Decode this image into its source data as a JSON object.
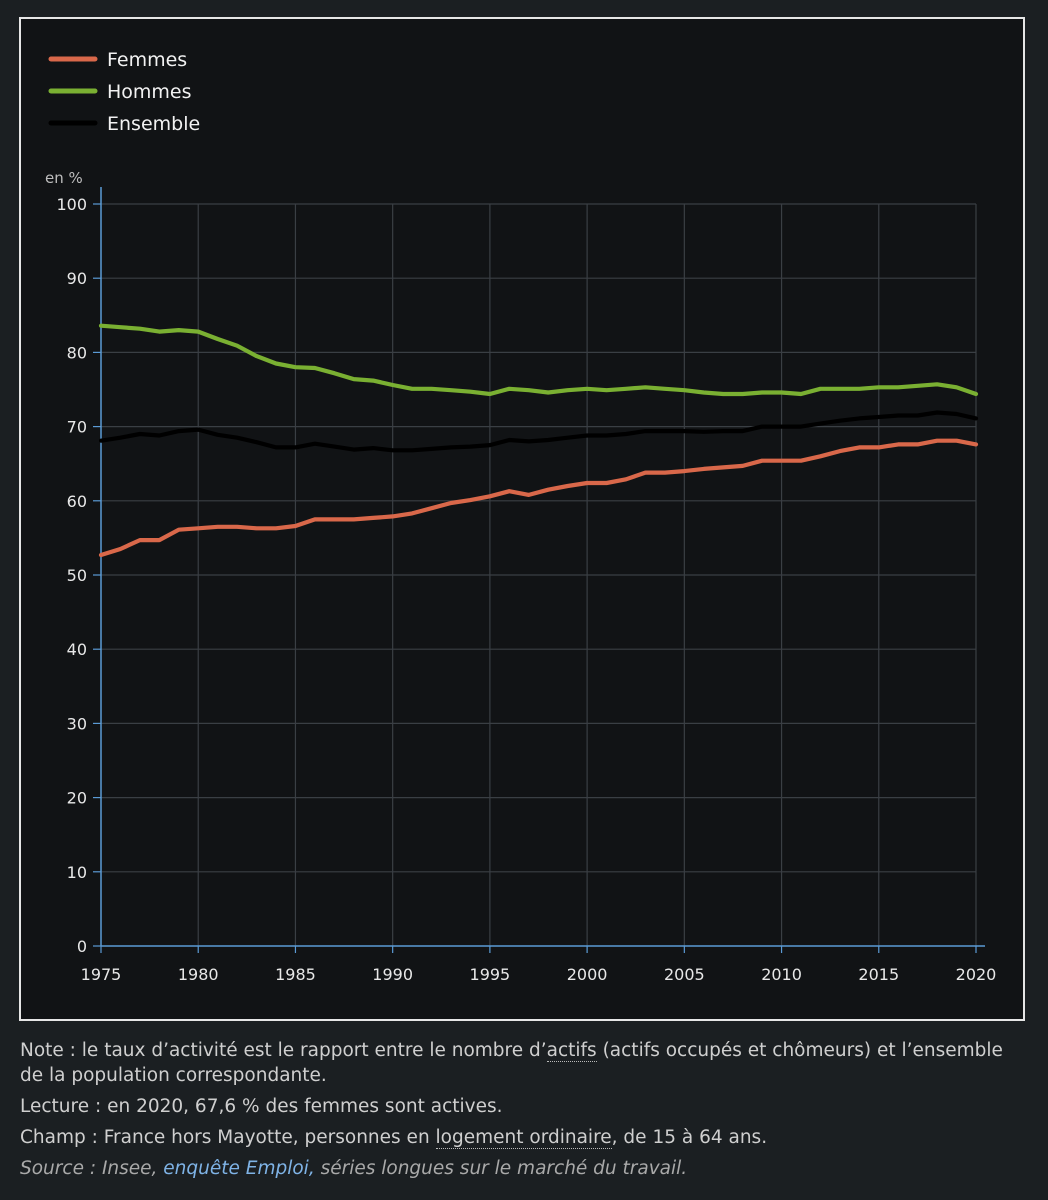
{
  "chart_data": {
    "type": "line",
    "unit_label": "en %",
    "xlim": [
      1975,
      2020
    ],
    "ylim": [
      0,
      100
    ],
    "x_ticks": [
      1975,
      1980,
      1985,
      1990,
      1995,
      2000,
      2005,
      2010,
      2015,
      2020
    ],
    "y_ticks": [
      0,
      10,
      20,
      30,
      40,
      50,
      60,
      70,
      80,
      90,
      100
    ],
    "grid": true,
    "legend_position": "top-left",
    "x": [
      1975,
      1976,
      1977,
      1978,
      1979,
      1980,
      1981,
      1982,
      1983,
      1984,
      1985,
      1986,
      1987,
      1988,
      1989,
      1990,
      1991,
      1992,
      1993,
      1994,
      1995,
      1996,
      1997,
      1998,
      1999,
      2000,
      2001,
      2002,
      2003,
      2004,
      2005,
      2006,
      2007,
      2008,
      2009,
      2010,
      2011,
      2012,
      2013,
      2014,
      2015,
      2016,
      2017,
      2018,
      2019,
      2020
    ],
    "series": [
      {
        "name": "Femmes",
        "color": "#d9684a",
        "values": [
          52.7,
          53.5,
          54.7,
          54.7,
          56.1,
          56.3,
          56.5,
          56.5,
          56.3,
          56.3,
          56.6,
          57.5,
          57.5,
          57.5,
          57.7,
          57.9,
          58.3,
          59.0,
          59.7,
          60.1,
          60.6,
          61.3,
          60.8,
          61.5,
          62.0,
          62.4,
          62.4,
          62.9,
          63.8,
          63.8,
          64.0,
          64.3,
          64.5,
          64.7,
          65.4,
          65.4,
          65.4,
          66.0,
          66.7,
          67.2,
          67.2,
          67.6,
          67.6,
          68.1,
          68.1,
          67.6
        ]
      },
      {
        "name": "Hommes",
        "color": "#7ab032",
        "values": [
          83.6,
          83.4,
          83.2,
          82.8,
          83.0,
          82.8,
          81.8,
          80.9,
          79.5,
          78.5,
          78.0,
          77.9,
          77.2,
          76.4,
          76.2,
          75.6,
          75.1,
          75.1,
          74.9,
          74.7,
          74.4,
          75.1,
          74.9,
          74.6,
          74.9,
          75.1,
          74.9,
          75.1,
          75.3,
          75.1,
          74.9,
          74.6,
          74.4,
          74.4,
          74.6,
          74.6,
          74.4,
          75.1,
          75.1,
          75.1,
          75.3,
          75.3,
          75.5,
          75.7,
          75.3,
          74.4
        ]
      },
      {
        "name": "Ensemble",
        "color": "#000000",
        "values": [
          68.1,
          68.5,
          69.0,
          68.8,
          69.4,
          69.6,
          68.9,
          68.5,
          67.9,
          67.2,
          67.2,
          67.7,
          67.3,
          66.9,
          67.1,
          66.8,
          66.8,
          67.0,
          67.2,
          67.3,
          67.5,
          68.2,
          68.0,
          68.2,
          68.5,
          68.8,
          68.8,
          69.0,
          69.4,
          69.4,
          69.4,
          69.3,
          69.4,
          69.4,
          70.0,
          70.0,
          70.0,
          70.4,
          70.8,
          71.1,
          71.3,
          71.5,
          71.5,
          71.9,
          71.7,
          71.1
        ]
      }
    ]
  },
  "notes": {
    "note_prefix": "Note : le taux d’activité est le rapport entre le nombre d’",
    "note_term": "actifs",
    "note_suffix": " (actifs occupés et chômeurs) et l’ensemble de la population correspondante.",
    "lecture": "Lecture : en 2020, 67,6 % des femmes sont actives.",
    "champ_prefix": "Champ : France hors Mayotte, personnes en ",
    "champ_term": "logement ordinaire",
    "champ_suffix": ", de 15 à 64 ans.",
    "source_prefix": "Source : Insee, ",
    "source_link": "enquête Emploi,",
    "source_suffix": " séries longues sur le marché du travail."
  },
  "colors": {
    "background": "#1b1f22",
    "chart_background": "#111315",
    "axis": "#5b9bd5",
    "grid": "#3a3f44",
    "link": "#7fb3e6"
  }
}
